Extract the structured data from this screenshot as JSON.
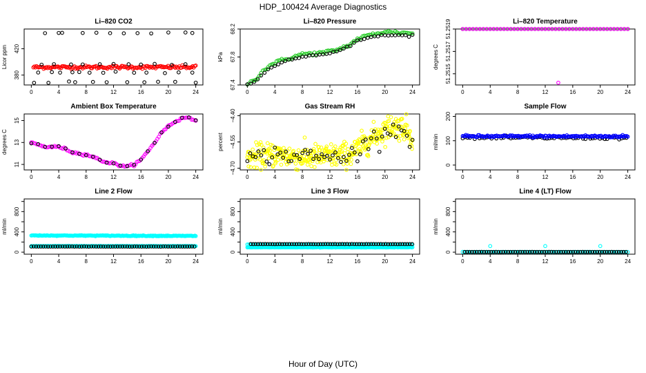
{
  "figure_title": "HDP_100424  Average Diagnostics",
  "x_axis_title": "Hour of Day (UTC)",
  "colors": {
    "black": "#000000",
    "red": "#ff0000",
    "green": "#22cc22",
    "magenta": "#ff00ff",
    "yellow": "#ffff00",
    "blue": "#0000ff",
    "cyan": "#00ffff"
  },
  "chart_data": [
    {
      "id": "li820-co2",
      "type": "scatter",
      "title": "Li–820 CO2",
      "ylabel": "Licor ppm",
      "xlim": [
        0,
        24
      ],
      "xticks": [
        0,
        4,
        8,
        12,
        16,
        20,
        24
      ],
      "ylim": [
        365,
        450
      ],
      "yticks": [
        380,
        420
      ],
      "ytick_labels": [
        "380",
        "420"
      ],
      "series": [
        {
          "name": "current",
          "color": "red",
          "kind": "dense",
          "base": 392,
          "noise": 1.2,
          "drift": [],
          "step": 0.15,
          "mask": [
            0.3,
            24
          ]
        },
        {
          "name": "average",
          "color": "black",
          "kind": "scattered-co2"
        }
      ]
    },
    {
      "id": "li820-pressure",
      "type": "scatter",
      "title": "Li–820 Pressure",
      "ylabel": "kPa",
      "xlim": [
        0,
        24
      ],
      "xticks": [
        0,
        4,
        8,
        12,
        16,
        20,
        24
      ],
      "ylim": [
        67.4,
        68.2
      ],
      "yticks": [
        67.4,
        67.8,
        68.2
      ],
      "ytick_labels": [
        "67.4",
        "67.8",
        "68.2"
      ],
      "series": [
        {
          "name": "current",
          "color": "green",
          "kind": "curve",
          "curve": [
            [
              0,
              67.42
            ],
            [
              1,
              67.46
            ],
            [
              2,
              67.58
            ],
            [
              3,
              67.66
            ],
            [
              4,
              67.72
            ],
            [
              6,
              67.78
            ],
            [
              8,
              67.84
            ],
            [
              11,
              67.86
            ],
            [
              13,
              67.9
            ],
            [
              15,
              67.98
            ],
            [
              16,
              68.06
            ],
            [
              18,
              68.12
            ],
            [
              20,
              68.16
            ],
            [
              24,
              68.14
            ]
          ],
          "noise": 0.012,
          "step": 0.25
        },
        {
          "name": "average",
          "color": "black",
          "kind": "curve",
          "curve": [
            [
              0,
              67.41
            ],
            [
              1,
              67.44
            ],
            [
              2,
              67.53
            ],
            [
              3,
              67.62
            ],
            [
              4,
              67.68
            ],
            [
              6,
              67.76
            ],
            [
              8,
              67.81
            ],
            [
              11,
              67.84
            ],
            [
              13,
              67.88
            ],
            [
              15,
              67.96
            ],
            [
              16,
              68.03
            ],
            [
              18,
              68.09
            ],
            [
              20,
              68.11
            ],
            [
              24,
              68.11
            ]
          ],
          "noise": 0.006,
          "step": 0.5
        }
      ]
    },
    {
      "id": "li820-temperature",
      "type": "scatter",
      "title": "Li–820 Temperature",
      "ylabel": "degrees C",
      "xlim": [
        0,
        24
      ],
      "xticks": [
        0,
        4,
        8,
        12,
        16,
        20,
        24
      ],
      "ylim": [
        51.2514,
        51.2519
      ],
      "yticks": [
        51.2515,
        51.2519
      ],
      "ytick_labels": [
        "51.2515",
        "51.2519"
      ],
      "tick_only": [
        51.2517
      ],
      "tick_only_labels": [
        "51.2517"
      ],
      "series": [
        {
          "name": "average",
          "color": "black",
          "kind": "curve",
          "curve": [
            [
              0,
              51.2519
            ],
            [
              24,
              51.2519
            ]
          ],
          "noise": 0,
          "step": 0.5
        },
        {
          "name": "current",
          "color": "magenta",
          "kind": "curve",
          "curve": [
            [
              0,
              51.2519
            ],
            [
              24,
              51.2519
            ]
          ],
          "noise": 0,
          "step": 0.5,
          "outlier": [
            [
              13.9,
              51.25142
            ]
          ]
        }
      ]
    },
    {
      "id": "ambient-box-temperature",
      "type": "scatter",
      "title": "Ambient Box Temperature",
      "ylabel": "degrees C",
      "xlim": [
        0,
        24
      ],
      "xticks": [
        0,
        4,
        8,
        12,
        16,
        20,
        24
      ],
      "ylim": [
        10.5,
        15.6
      ],
      "yticks": [
        11,
        13,
        15
      ],
      "ytick_labels": [
        "11",
        "13",
        "15"
      ],
      "series": [
        {
          "name": "current",
          "color": "magenta",
          "kind": "curve",
          "curve": [
            [
              0,
              13.0
            ],
            [
              1,
              12.8
            ],
            [
              2,
              12.6
            ],
            [
              3,
              12.6
            ],
            [
              4,
              12.6
            ],
            [
              5,
              12.4
            ],
            [
              6,
              12.1
            ],
            [
              7,
              12.0
            ],
            [
              8,
              11.9
            ],
            [
              9,
              11.7
            ],
            [
              10,
              11.4
            ],
            [
              11,
              11.2
            ],
            [
              12,
              11.1
            ],
            [
              13,
              10.9
            ],
            [
              14,
              10.8
            ],
            [
              15,
              11.0
            ],
            [
              16,
              11.4
            ],
            [
              17,
              12.2
            ],
            [
              18,
              13.0
            ],
            [
              19,
              13.9
            ],
            [
              20,
              14.5
            ],
            [
              21,
              14.9
            ],
            [
              22,
              15.2
            ],
            [
              23,
              15.3
            ],
            [
              24,
              15.0
            ]
          ],
          "noise": 0.05,
          "step": 0.2
        },
        {
          "name": "average",
          "color": "black",
          "kind": "curve",
          "curve": [
            [
              0,
              13.0
            ],
            [
              1,
              12.8
            ],
            [
              2,
              12.6
            ],
            [
              3,
              12.6
            ],
            [
              4,
              12.6
            ],
            [
              5,
              12.4
            ],
            [
              6,
              12.1
            ],
            [
              7,
              12.0
            ],
            [
              8,
              11.9
            ],
            [
              9,
              11.7
            ],
            [
              10,
              11.4
            ],
            [
              11,
              11.2
            ],
            [
              12,
              11.1
            ],
            [
              13,
              10.9
            ],
            [
              14,
              10.8
            ],
            [
              15,
              11.0
            ],
            [
              16,
              11.4
            ],
            [
              17,
              12.2
            ],
            [
              18,
              13.0
            ],
            [
              19,
              13.9
            ],
            [
              20,
              14.5
            ],
            [
              21,
              14.9
            ],
            [
              22,
              15.2
            ],
            [
              23,
              15.3
            ],
            [
              24,
              15.0
            ]
          ],
          "noise": 0.03,
          "step": 1.0
        }
      ]
    },
    {
      "id": "gas-stream-rh",
      "type": "scatter",
      "title": "Gas Stream RH",
      "ylabel": "percent",
      "xlim": [
        0,
        24
      ],
      "xticks": [
        0,
        4,
        8,
        12,
        16,
        20,
        24
      ],
      "ylim": [
        -4.71,
        -4.39
      ],
      "yticks": [
        -4.7,
        -4.55,
        -4.4
      ],
      "ytick_labels": [
        "−4.70",
        "−4.55",
        "−4.40"
      ],
      "series": [
        {
          "name": "current",
          "color": "yellow",
          "kind": "curve",
          "curve": [
            [
              0,
              -4.64
            ],
            [
              4,
              -4.62
            ],
            [
              8,
              -4.64
            ],
            [
              12,
              -4.63
            ],
            [
              15,
              -4.62
            ],
            [
              17,
              -4.56
            ],
            [
              19,
              -4.5
            ],
            [
              21,
              -4.46
            ],
            [
              23,
              -4.47
            ],
            [
              24,
              -4.52
            ]
          ],
          "noise": 0.035,
          "step": 0.06
        },
        {
          "name": "average",
          "color": "black",
          "kind": "curve",
          "curve": [
            [
              0,
              -4.65
            ],
            [
              4,
              -4.62
            ],
            [
              8,
              -4.63
            ],
            [
              12,
              -4.64
            ],
            [
              15,
              -4.63
            ],
            [
              17,
              -4.57
            ],
            [
              19,
              -4.51
            ],
            [
              21,
              -4.47
            ],
            [
              23,
              -4.49
            ],
            [
              24,
              -4.54
            ]
          ],
          "noise": 0.025,
          "step": 0.4
        }
      ]
    },
    {
      "id": "sample-flow",
      "type": "scatter",
      "title": "Sample Flow",
      "ylabel": "ml/min",
      "xlim": [
        0,
        24
      ],
      "xticks": [
        0,
        4,
        8,
        12,
        16,
        20,
        24
      ],
      "ylim": [
        -20,
        210
      ],
      "yticks": [
        0,
        100,
        200
      ],
      "ytick_labels": [
        "0",
        "100",
        "200"
      ],
      "series": [
        {
          "name": "average",
          "color": "black",
          "kind": "curve",
          "curve": [
            [
              0,
              112
            ],
            [
              24,
              112
            ]
          ],
          "noise": 3,
          "step": 0.35
        },
        {
          "name": "current",
          "color": "blue",
          "kind": "curve",
          "curve": [
            [
              0,
              118
            ],
            [
              24,
              118
            ]
          ],
          "noise": 2.5,
          "step": 0.15
        }
      ]
    },
    {
      "id": "line2-flow",
      "type": "scatter",
      "title": "Line 2 Flow",
      "ylabel": "ml/min",
      "xlim": [
        0,
        24
      ],
      "xticks": [
        0,
        4,
        8,
        12,
        16,
        20,
        24
      ],
      "ylim": [
        -40,
        1050
      ],
      "yticks": [
        0,
        200,
        400,
        600,
        800,
        1000
      ],
      "ytick_labels": [
        "0",
        "",
        "400",
        "",
        "800",
        ""
      ],
      "series": [
        {
          "name": "current-a",
          "color": "cyan",
          "kind": "curve",
          "curve": [
            [
              0,
              330
            ],
            [
              24,
              320
            ]
          ],
          "noise": 4,
          "step": 0.12
        },
        {
          "name": "current-b",
          "color": "cyan",
          "kind": "curve",
          "curve": [
            [
              0,
              120
            ],
            [
              24,
              120
            ]
          ],
          "noise": 2,
          "step": 0.12
        },
        {
          "name": "average",
          "color": "black",
          "kind": "curve",
          "curve": [
            [
              0,
              110
            ],
            [
              24,
              110
            ]
          ],
          "noise": 1,
          "step": 0.35
        }
      ]
    },
    {
      "id": "line3-flow",
      "type": "scatter",
      "title": "Line 3 Flow",
      "ylabel": "ml/min",
      "xlim": [
        0,
        24
      ],
      "xticks": [
        0,
        4,
        8,
        12,
        16,
        20,
        24
      ],
      "ylim": [
        -40,
        1050
      ],
      "yticks": [
        0,
        200,
        400,
        600,
        800,
        1000
      ],
      "ytick_labels": [
        "0",
        "",
        "400",
        "",
        "800",
        ""
      ],
      "series": [
        {
          "name": "current-a",
          "color": "cyan",
          "kind": "curve",
          "curve": [
            [
              0,
              95
            ],
            [
              24,
              95
            ]
          ],
          "noise": 2,
          "step": 0.12
        },
        {
          "name": "current-b",
          "color": "cyan",
          "kind": "curve",
          "curve": [
            [
              0,
              150
            ],
            [
              24,
              150
            ]
          ],
          "noise": 1,
          "step": 0.2
        },
        {
          "name": "average",
          "color": "black",
          "kind": "curve",
          "curve": [
            [
              0.5,
              160
            ],
            [
              24,
              160
            ]
          ],
          "noise": 1,
          "step": 0.35
        }
      ]
    },
    {
      "id": "line4-flow",
      "type": "scatter",
      "title": "Line 4 (LT) Flow",
      "ylabel": "ml/min",
      "xlim": [
        0,
        24
      ],
      "xticks": [
        0,
        4,
        8,
        12,
        16,
        20,
        24
      ],
      "ylim": [
        -40,
        1050
      ],
      "yticks": [
        0,
        200,
        400,
        600,
        800,
        1000
      ],
      "ytick_labels": [
        "0",
        "",
        "400",
        "",
        "800",
        ""
      ],
      "series": [
        {
          "name": "current",
          "color": "cyan",
          "kind": "curve",
          "curve": [
            [
              0,
              5
            ],
            [
              24,
              5
            ]
          ],
          "noise": 0.5,
          "step": 0.25,
          "outlier": [
            [
              4,
              120
            ],
            [
              12,
              120
            ],
            [
              20,
              120
            ]
          ]
        },
        {
          "name": "average",
          "color": "black",
          "kind": "curve",
          "curve": [
            [
              0.3,
              5
            ],
            [
              24,
              5
            ]
          ],
          "noise": 0.5,
          "step": 0.35
        }
      ]
    }
  ]
}
